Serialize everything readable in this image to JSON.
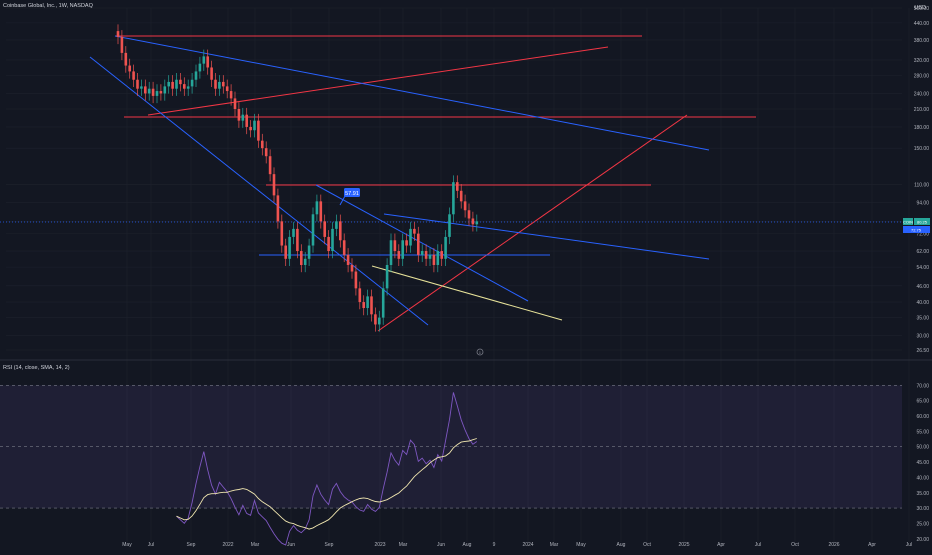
{
  "header": {
    "title": "Coinbase Global, Inc., 1W, NASDAQ",
    "currency": "USD"
  },
  "price_badges": {
    "last_a": "COIN",
    "last_b": "80.25",
    "label_c": "72.75"
  },
  "callout_label": "57.91",
  "event_marker": "D",
  "rsi_label": "RSI (14, close, SMA, 14, 2)",
  "colors": {
    "background": "#131722",
    "up": "#26a69a",
    "down": "#ef5350",
    "blue_line": "#2962ff",
    "red_line": "#f23645",
    "yellow_line": "#e8e39a",
    "rsi": "#7e57c2",
    "rsi_ma": "#f0e6b0",
    "rsi_band": "rgba(126,87,194,0.12)"
  },
  "chart_data": [
    {
      "type": "candlestick",
      "title": "Coinbase Global, Inc., 1W, NASDAQ",
      "y_scale": "log",
      "y_ticks": [
        "500.00",
        "440.00",
        "380.00",
        "320.00",
        "280.00",
        "240.00",
        "210.00",
        "180.00",
        "150.00",
        "110.00",
        "94.00",
        "80.00",
        "72.00",
        "62.00",
        "54.00",
        "46.00",
        "40.00",
        "35.00",
        "30.00",
        "26.50"
      ],
      "x_ticks": [
        "May",
        "Jul",
        "Sep",
        "2022",
        "Mar",
        "Jun",
        "Sep",
        "2023",
        "Mar",
        "Jun",
        "Aug",
        "9",
        "2024",
        "Mar",
        "May",
        "Aug",
        "Oct",
        "2025",
        "Apr",
        "Jul",
        "Oct",
        "2026",
        "Apr",
        "Jul"
      ],
      "weekly_close": [
        390,
        340,
        305,
        290,
        270,
        250,
        255,
        240,
        250,
        235,
        245,
        240,
        255,
        265,
        250,
        270,
        260,
        250,
        255,
        270,
        290,
        310,
        330,
        300,
        270,
        250,
        265,
        255,
        245,
        230,
        210,
        190,
        200,
        180,
        175,
        190,
        160,
        150,
        140,
        120,
        100,
        80,
        65,
        58,
        70,
        75,
        62,
        55,
        58,
        65,
        85,
        95,
        80,
        70,
        62,
        75,
        80,
        68,
        60,
        55,
        52,
        45,
        40,
        38,
        42,
        36,
        33,
        35,
        45,
        55,
        68,
        62,
        58,
        68,
        65,
        75,
        72,
        60,
        62,
        58,
        60,
        55,
        62,
        58,
        70,
        85,
        112,
        104,
        95,
        88,
        82,
        78,
        80
      ],
      "rsi": {
        "ylim": [
          20,
          70
        ],
        "upper_band": 70,
        "lower_band": 30,
        "mid": 50,
        "ticks": [
          "70.00",
          "65.00",
          "60.00",
          "55.00",
          "50.00",
          "45.00",
          "40.00",
          "35.00",
          "30.00",
          "25.00",
          "20.00"
        ]
      }
    }
  ]
}
